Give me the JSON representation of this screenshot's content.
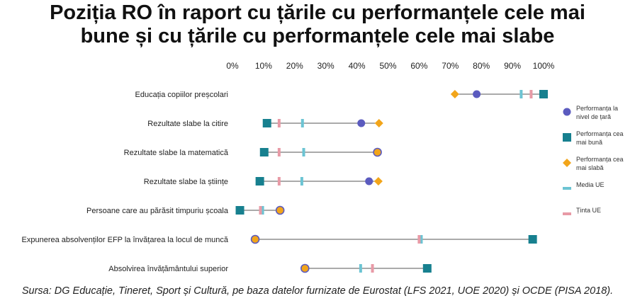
{
  "title": [
    "Poziția RO în raport cu țările cu performanțele cele mai",
    "bune și cu țările cu performanțele cele mai slabe"
  ],
  "source": "Sursa: DG Educație, Tineret, Sport și Cultură, pe baza datelor furnizate de Eurostat (LFS 2021, UOE 2020) și OCDE (PISA 2018).",
  "colors": {
    "country": "#5b5bbf",
    "best": "#17808f",
    "worst": "#f2a51a",
    "eu_avg": "#6cc4d3",
    "eu_target": "#e89aa6",
    "line": "#555555"
  },
  "chart_data": {
    "type": "dot-range",
    "x_ticks": [
      "0%",
      "10%",
      "20%",
      "30%",
      "40%",
      "50%",
      "60%",
      "70%",
      "80%",
      "90%",
      "100%"
    ],
    "xlim": [
      0,
      100
    ],
    "legend": {
      "position": "right",
      "items": [
        {
          "key": "country",
          "label": [
            "Performanța la",
            "nivel de țară"
          ],
          "marker": "circle"
        },
        {
          "key": "best",
          "label": [
            "Performanța cea",
            "mai bună"
          ],
          "marker": "square"
        },
        {
          "key": "worst",
          "label": [
            "Performanța cea",
            "mai slabă"
          ],
          "marker": "diamond"
        },
        {
          "key": "eu_avg",
          "label": [
            "Media UE"
          ],
          "marker": "tick"
        },
        {
          "key": "eu_target",
          "label": [
            "Ținta UE"
          ],
          "marker": "tick"
        }
      ]
    },
    "categories": [
      {
        "label": "Educația copiilor preșcolari",
        "country": 78.5,
        "best": 100,
        "worst": 71.5,
        "eu_avg": 92.8,
        "eu_target": 96
      },
      {
        "label": "Rezultate slabe la citire",
        "country": 41.4,
        "best": 11.1,
        "worst": 47.1,
        "eu_avg": 22.5,
        "eu_target": 15
      },
      {
        "label": "Rezultate slabe la matematică",
        "country": 46.6,
        "best": 10.2,
        "worst": 46.6,
        "eu_avg": 22.9,
        "eu_target": 15
      },
      {
        "label": "Rezultate slabe la științe",
        "country": 43.9,
        "best": 8.8,
        "worst": 46.9,
        "eu_avg": 22.3,
        "eu_target": 15
      },
      {
        "label": "Persoane care au părăsit timpuriu școala",
        "country": 15.3,
        "best": 2.4,
        "worst": 15.3,
        "eu_avg": 9.7,
        "eu_target": 9
      },
      {
        "label": "Expunerea absolvenților EFP la învățarea la locul de muncă",
        "country": 7.3,
        "best": 96.5,
        "worst": 7.3,
        "eu_avg": 60.7,
        "eu_target": 60
      },
      {
        "label": "Absolvirea învățământului superior",
        "country": 23.3,
        "best": 62.6,
        "worst": 23.3,
        "eu_avg": 41.2,
        "eu_target": 45
      }
    ]
  }
}
